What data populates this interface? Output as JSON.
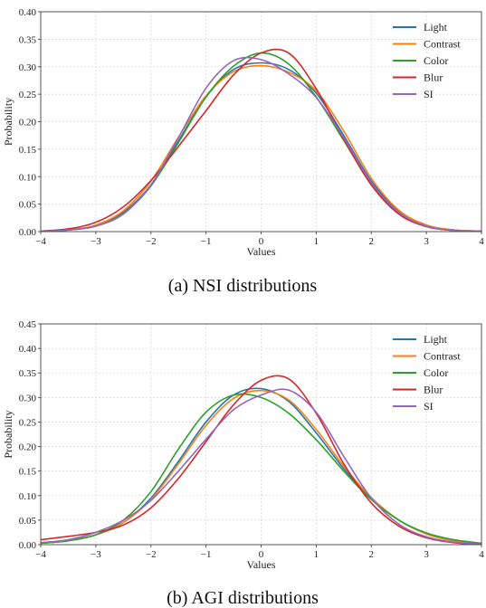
{
  "chart_data": [
    {
      "type": "line",
      "caption": "(a)  NSI distributions",
      "xlabel": "Values",
      "ylabel": "Probability",
      "xlim": [
        -4,
        4
      ],
      "ylim": [
        0,
        0.4
      ],
      "xticks": [
        -4,
        -3,
        -2,
        -1,
        0,
        1,
        2,
        3,
        4
      ],
      "yticks": [
        0.0,
        0.05,
        0.1,
        0.15,
        0.2,
        0.25,
        0.3,
        0.35,
        0.4
      ],
      "ytick_labels": [
        "0.00",
        "0.05",
        "0.10",
        "0.15",
        "0.20",
        "0.25",
        "0.30",
        "0.35",
        "0.40"
      ],
      "grid": true,
      "legend_position": "top-right",
      "x": [
        -4,
        -3.5,
        -3,
        -2.5,
        -2,
        -1.5,
        -1,
        -0.5,
        0,
        0.5,
        1,
        1.5,
        2,
        2.5,
        3,
        3.5,
        4
      ],
      "series": [
        {
          "name": "Light",
          "color": "#1f77b4",
          "values": [
            0.001,
            0.003,
            0.011,
            0.035,
            0.085,
            0.165,
            0.245,
            0.295,
            0.307,
            0.295,
            0.252,
            0.175,
            0.092,
            0.038,
            0.012,
            0.003,
            0.001
          ]
        },
        {
          "name": "Contrast",
          "color": "#ff7f0e",
          "values": [
            0.001,
            0.003,
            0.012,
            0.038,
            0.092,
            0.172,
            0.247,
            0.291,
            0.302,
            0.29,
            0.256,
            0.183,
            0.097,
            0.039,
            0.012,
            0.003,
            0.001
          ]
        },
        {
          "name": "Color",
          "color": "#2ca02c",
          "values": [
            0.001,
            0.003,
            0.01,
            0.033,
            0.083,
            0.162,
            0.245,
            0.301,
            0.325,
            0.305,
            0.245,
            0.166,
            0.087,
            0.034,
            0.01,
            0.002,
            0.001
          ]
        },
        {
          "name": "Blur",
          "color": "#d62728",
          "values": [
            0.001,
            0.005,
            0.017,
            0.045,
            0.093,
            0.155,
            0.22,
            0.285,
            0.325,
            0.325,
            0.26,
            0.168,
            0.085,
            0.032,
            0.009,
            0.002,
            0.001
          ]
        },
        {
          "name": "SI",
          "color": "#9467bd",
          "values": [
            0.001,
            0.003,
            0.01,
            0.032,
            0.085,
            0.171,
            0.261,
            0.311,
            0.313,
            0.287,
            0.244,
            0.171,
            0.089,
            0.035,
            0.01,
            0.002,
            0.001
          ]
        }
      ]
    },
    {
      "type": "line",
      "caption": "(b)  AGI distributions",
      "xlabel": "Values",
      "ylabel": "Probability",
      "xlim": [
        -4,
        4
      ],
      "ylim": [
        0,
        0.45
      ],
      "xticks": [
        -4,
        -3,
        -2,
        -1,
        0,
        1,
        2,
        3,
        4
      ],
      "yticks": [
        0.0,
        0.05,
        0.1,
        0.15,
        0.2,
        0.25,
        0.3,
        0.35,
        0.4,
        0.45
      ],
      "ytick_labels": [
        "0.00",
        "0.05",
        "0.10",
        "0.15",
        "0.20",
        "0.25",
        "0.30",
        "0.35",
        "0.40",
        "0.45"
      ],
      "grid": true,
      "legend_position": "top-right",
      "x": [
        -4,
        -3.5,
        -3,
        -2.5,
        -2,
        -1.5,
        -1,
        -0.5,
        0,
        0.5,
        1,
        1.5,
        2,
        2.5,
        3,
        3.5,
        4
      ],
      "series": [
        {
          "name": "Light",
          "color": "#1f77b4",
          "values": [
            0.003,
            0.008,
            0.02,
            0.045,
            0.095,
            0.17,
            0.25,
            0.305,
            0.318,
            0.292,
            0.228,
            0.155,
            0.095,
            0.05,
            0.022,
            0.008,
            0.002
          ]
        },
        {
          "name": "Contrast",
          "color": "#ff7f0e",
          "values": [
            0.003,
            0.008,
            0.02,
            0.045,
            0.092,
            0.165,
            0.243,
            0.298,
            0.314,
            0.295,
            0.235,
            0.16,
            0.096,
            0.05,
            0.022,
            0.008,
            0.002
          ]
        },
        {
          "name": "Color",
          "color": "#2ca02c",
          "values": [
            0.003,
            0.008,
            0.02,
            0.05,
            0.108,
            0.195,
            0.27,
            0.305,
            0.3,
            0.268,
            0.214,
            0.15,
            0.092,
            0.05,
            0.024,
            0.01,
            0.003
          ]
        },
        {
          "name": "Blur",
          "color": "#d62728",
          "values": [
            0.01,
            0.017,
            0.025,
            0.04,
            0.075,
            0.135,
            0.21,
            0.285,
            0.335,
            0.338,
            0.268,
            0.165,
            0.085,
            0.038,
            0.014,
            0.004,
            0.001
          ]
        },
        {
          "name": "SI",
          "color": "#9467bd",
          "values": [
            0.004,
            0.01,
            0.025,
            0.05,
            0.09,
            0.15,
            0.215,
            0.275,
            0.305,
            0.315,
            0.27,
            0.18,
            0.095,
            0.042,
            0.016,
            0.005,
            0.001
          ]
        }
      ]
    }
  ]
}
